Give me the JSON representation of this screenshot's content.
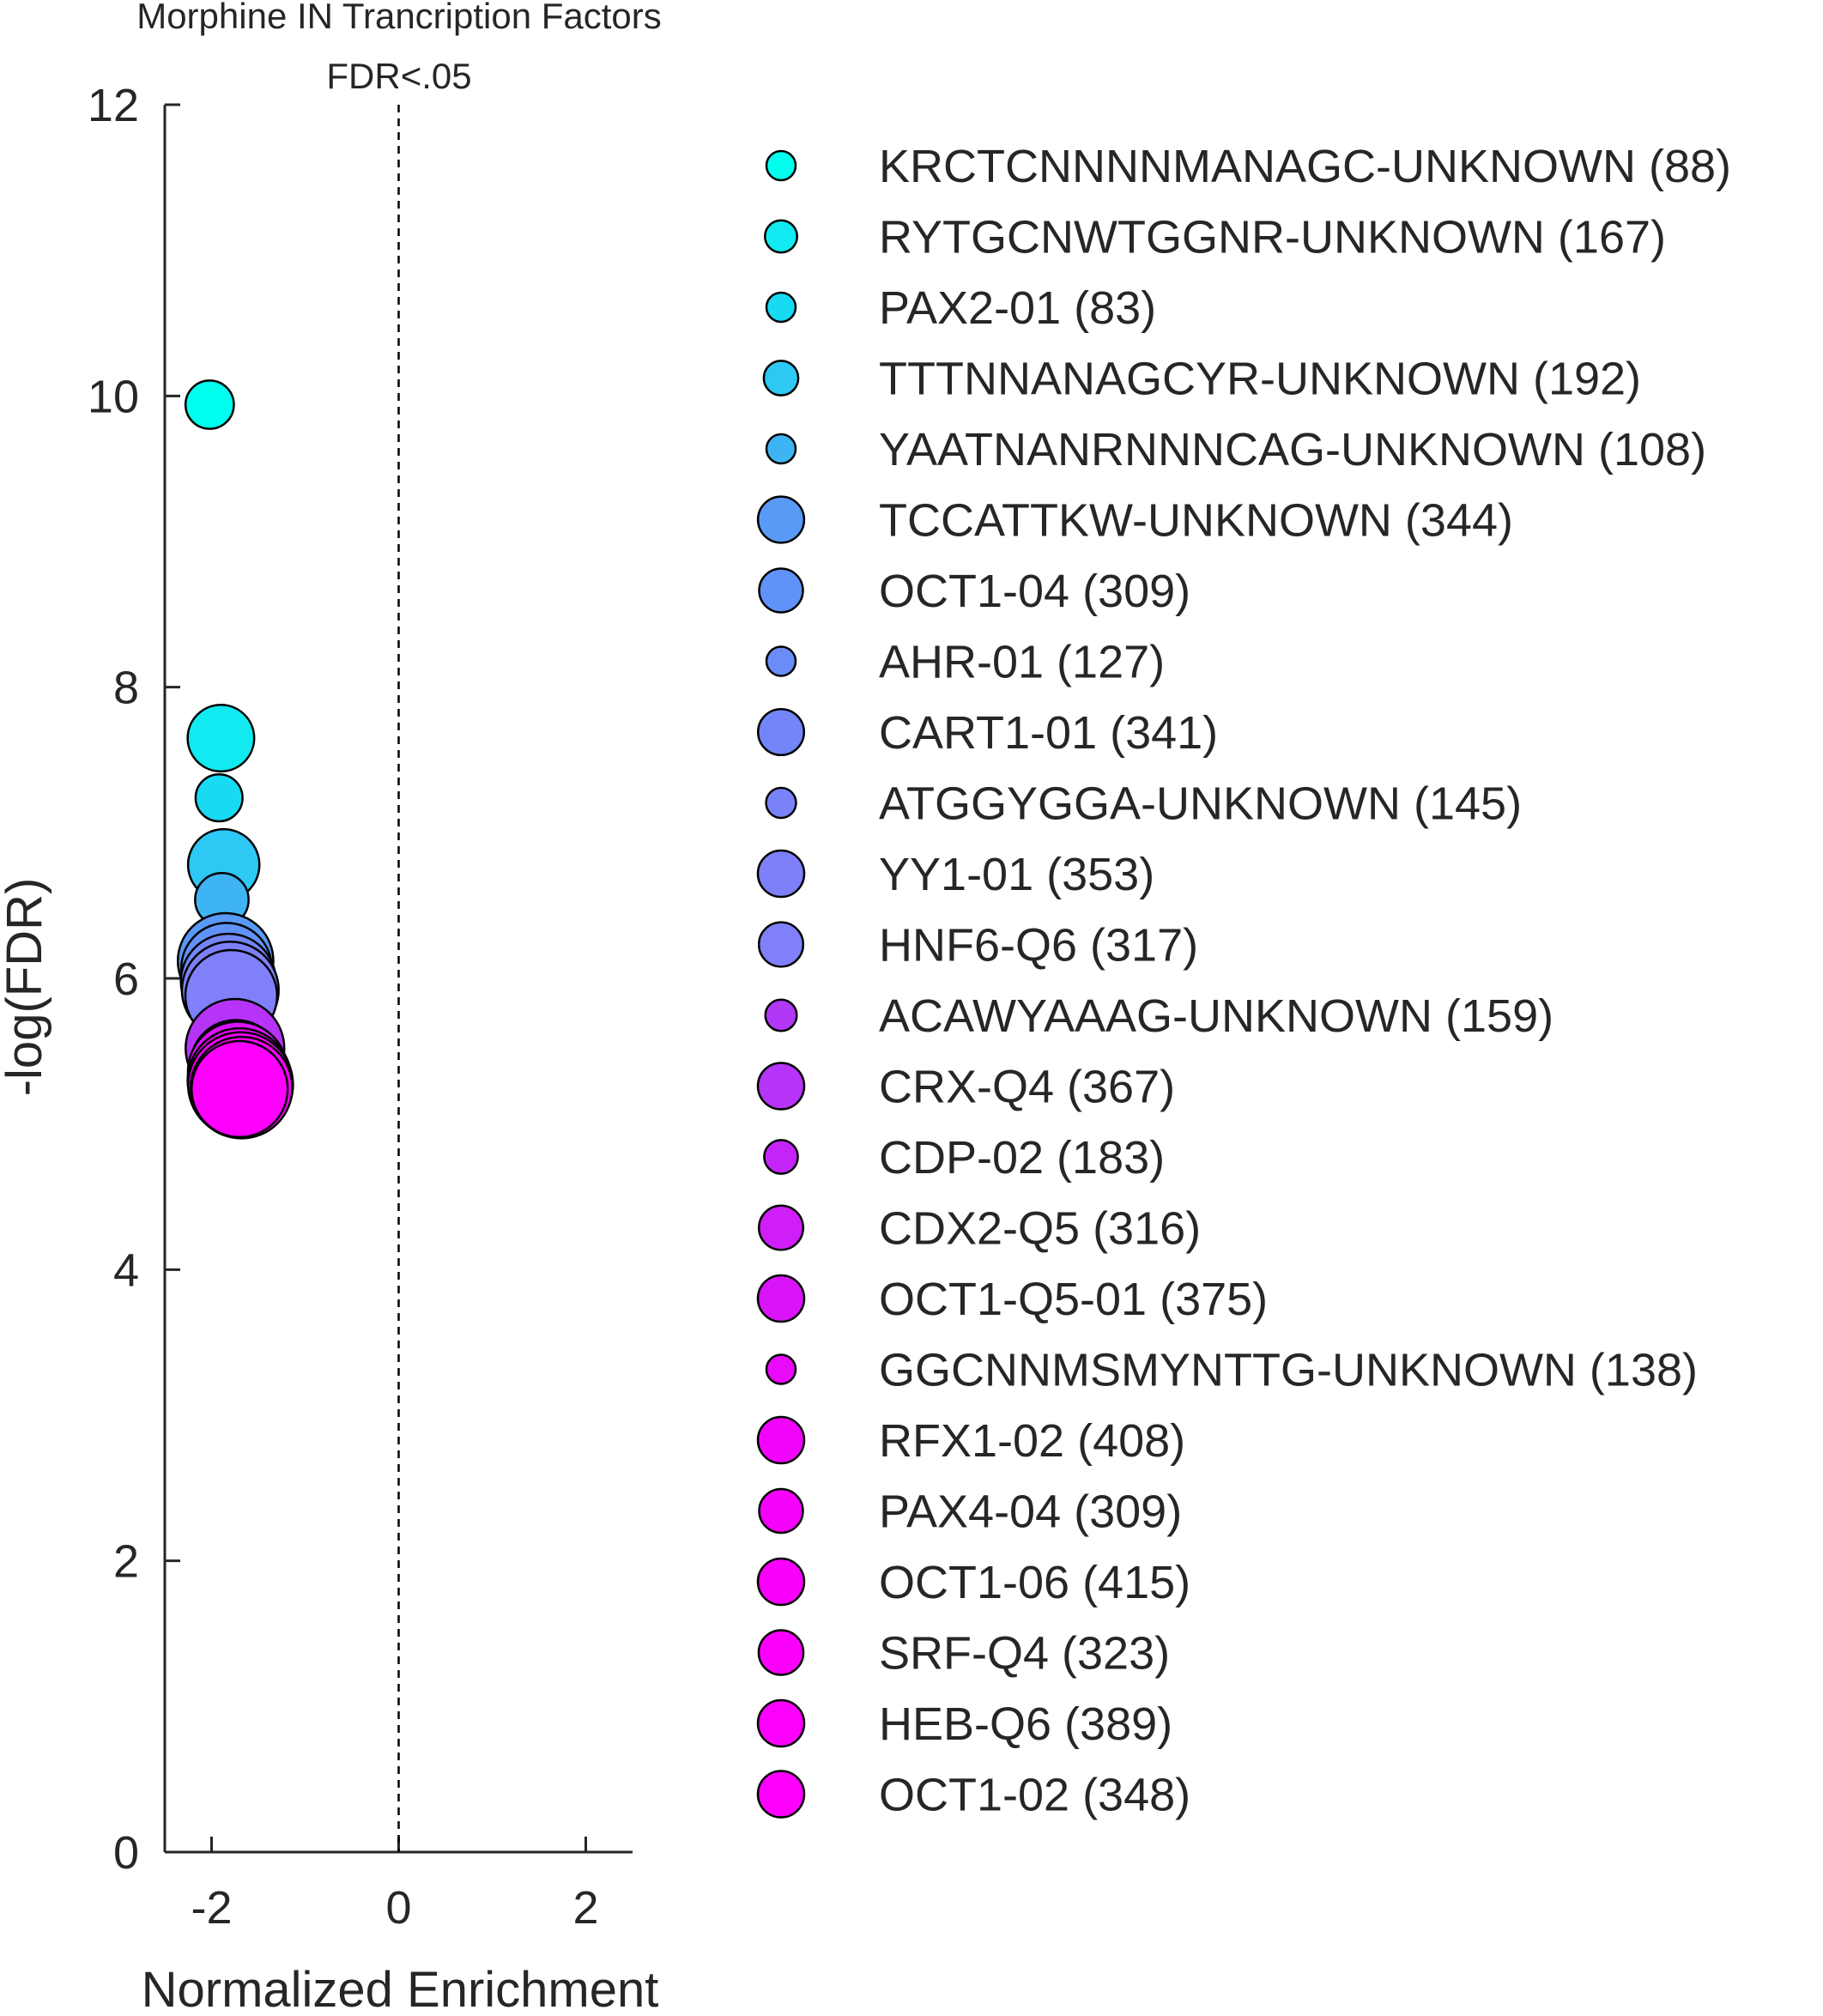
{
  "chart_data": {
    "type": "scatter",
    "title": "Morphine IN Trancription Factors",
    "subtitle": "FDR<.05",
    "xlabel": "Normalized Enrichment",
    "ylabel": "-log(FDR)",
    "xlim": [
      -2.5,
      2.5
    ],
    "ylim": [
      0,
      12
    ],
    "x_ticks": [
      "-2",
      "0",
      "2"
    ],
    "y_ticks": [
      "0",
      "2",
      "4",
      "6",
      "8",
      "10",
      "12"
    ],
    "reference_line": {
      "x": 0,
      "style": "dashed"
    },
    "grid": false,
    "legend_position": "right",
    "series": [
      {
        "name": "KRCTCNNNNMANAGC-UNKNOWN (88)",
        "x": -2.02,
        "y": 9.94,
        "size": 88,
        "color": "#00ffee"
      },
      {
        "name": "RYTGCNWTGGNR-UNKNOWN (167)",
        "x": -1.9,
        "y": 7.65,
        "size": 167,
        "color": "#10eaf0"
      },
      {
        "name": "PAX2-01 (83)",
        "x": -1.92,
        "y": 7.24,
        "size": 83,
        "color": "#18daf2"
      },
      {
        "name": "TTTNNANAGCYR-UNKNOWN (192)",
        "x": -1.87,
        "y": 6.78,
        "size": 192,
        "color": "#2ec8f4"
      },
      {
        "name": "YAATNANRNNNCAG-UNKNOWN (108)",
        "x": -1.89,
        "y": 6.54,
        "size": 108,
        "color": "#3fb4f5"
      },
      {
        "name": "TCCATTKW-UNKNOWN (344)",
        "x": -1.85,
        "y": 6.12,
        "size": 344,
        "color": "#5a9af7"
      },
      {
        "name": "OCT1-04 (309)",
        "x": -1.84,
        "y": 6.07,
        "size": 309,
        "color": "#6092f8"
      },
      {
        "name": "AHR-01 (127)",
        "x": -1.86,
        "y": 6.02,
        "size": 127,
        "color": "#6a8cf8"
      },
      {
        "name": "CART1-01 (341)",
        "x": -1.82,
        "y": 5.98,
        "size": 341,
        "color": "#7286f9"
      },
      {
        "name": "ATGGYGGA-UNKNOWN (145)",
        "x": -1.83,
        "y": 5.94,
        "size": 145,
        "color": "#7a82f9"
      },
      {
        "name": "YY1-01 (353)",
        "x": -1.8,
        "y": 5.92,
        "size": 353,
        "color": "#7e80fa"
      },
      {
        "name": "HNF6-Q6 (317)",
        "x": -1.79,
        "y": 5.88,
        "size": 317,
        "color": "#8080fa"
      },
      {
        "name": "ACAWYAAAG-UNKNOWN (159)",
        "x": -1.78,
        "y": 5.58,
        "size": 159,
        "color": "#b038f6"
      },
      {
        "name": "CRX-Q4 (367)",
        "x": -1.75,
        "y": 5.52,
        "size": 367,
        "color": "#b634f7"
      },
      {
        "name": "CDP-02 (183)",
        "x": -1.76,
        "y": 5.46,
        "size": 183,
        "color": "#c424f8"
      },
      {
        "name": "CDX2-Q5 (316)",
        "x": -1.74,
        "y": 5.4,
        "size": 316,
        "color": "#d01ef8"
      },
      {
        "name": "OCT1-Q5-01 (375)",
        "x": -1.72,
        "y": 5.36,
        "size": 375,
        "color": "#da14f9"
      },
      {
        "name": "GGCNNMSMYNTTG-UNKNOWN (138)",
        "x": -1.74,
        "y": 5.32,
        "size": 138,
        "color": "#e80af9"
      },
      {
        "name": "RFX1-02 (408)",
        "x": -1.7,
        "y": 5.3,
        "size": 408,
        "color": "#f004fb"
      },
      {
        "name": "PAX4-04 (309)",
        "x": -1.71,
        "y": 5.28,
        "size": 309,
        "color": "#f402fb"
      },
      {
        "name": "OCT1-06 (415)",
        "x": -1.69,
        "y": 5.27,
        "size": 415,
        "color": "#f800fc"
      },
      {
        "name": "SRF-Q4 (323)",
        "x": -1.7,
        "y": 5.26,
        "size": 323,
        "color": "#fa00fc"
      },
      {
        "name": "HEB-Q6 (389)",
        "x": -1.68,
        "y": 5.25,
        "size": 389,
        "color": "#fc00fd"
      },
      {
        "name": "OCT1-02 (348)",
        "x": -1.7,
        "y": 5.24,
        "size": 348,
        "color": "#ff00ff"
      }
    ]
  }
}
